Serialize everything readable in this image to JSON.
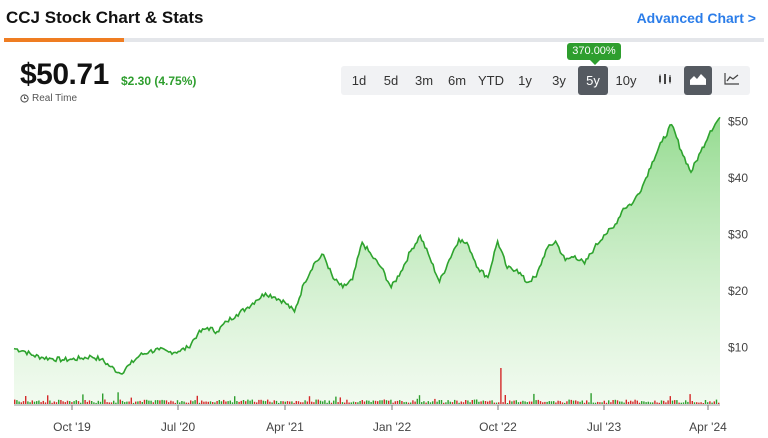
{
  "header": {
    "title": "CCJ Stock Chart & Stats",
    "advanced_link": "Advanced Chart >"
  },
  "quote": {
    "price": "$50.71",
    "change": "$2.30 (4.75%)",
    "realtime_label": "Real Time"
  },
  "ranges": {
    "items": [
      "1d",
      "5d",
      "3m",
      "6m",
      "YTD",
      "1y",
      "3y",
      "5y",
      "10y"
    ],
    "selected": "5y",
    "selected_return": "370.00%"
  },
  "chart_types": [
    {
      "name": "candlestick-icon",
      "active": false
    },
    {
      "name": "area-chart-icon",
      "active": true
    },
    {
      "name": "line-chart-icon",
      "active": false
    }
  ],
  "colors": {
    "accent": "#2b7de9",
    "tab_accent": "#ef7d22",
    "up": "#2e9e2e",
    "down": "#d42a2a",
    "area_top": "#8fd98a",
    "line": "#2ea32e"
  },
  "chart_data": {
    "type": "area",
    "y_ticks": [
      "$10",
      "$20",
      "$30",
      "$40",
      "$50"
    ],
    "ylim": [
      0,
      52
    ],
    "x_ticks": [
      "Oct '19",
      "Jul '20",
      "Apr '21",
      "Jan '22",
      "Oct '22",
      "Jul '23",
      "Apr '24"
    ],
    "series": [
      {
        "values": [
          9.8,
          9.4,
          8.6,
          8.2,
          8.0,
          7.8,
          7.9,
          8.1,
          8.4,
          7.9,
          6.6,
          5.4,
          7.0,
          8.6,
          9.3,
          9.6,
          9.2,
          9.3,
          10.0,
          12.4,
          13.5,
          12.8,
          14.6,
          15.8,
          16.9,
          18.3,
          19.6,
          18.9,
          18.0,
          16.3,
          21.4,
          24.8,
          26.4,
          22.2,
          20.6,
          22.0,
          28.6,
          26.2,
          24.1,
          20.6,
          23.4,
          27.0,
          29.8,
          25.8,
          21.6,
          25.5,
          29.2,
          28.0,
          24.0,
          22.4,
          28.8,
          24.0,
          23.8,
          21.5,
          22.5,
          27.2,
          28.8,
          25.4,
          26.2,
          24.8,
          27.6,
          29.9,
          31.2,
          34.6,
          35.6,
          38.6,
          42.8,
          46.4,
          49.4,
          44.8,
          41.0,
          44.6,
          48.3,
          50.71
        ]
      }
    ],
    "volume_spike_label": "",
    "grid": false
  }
}
